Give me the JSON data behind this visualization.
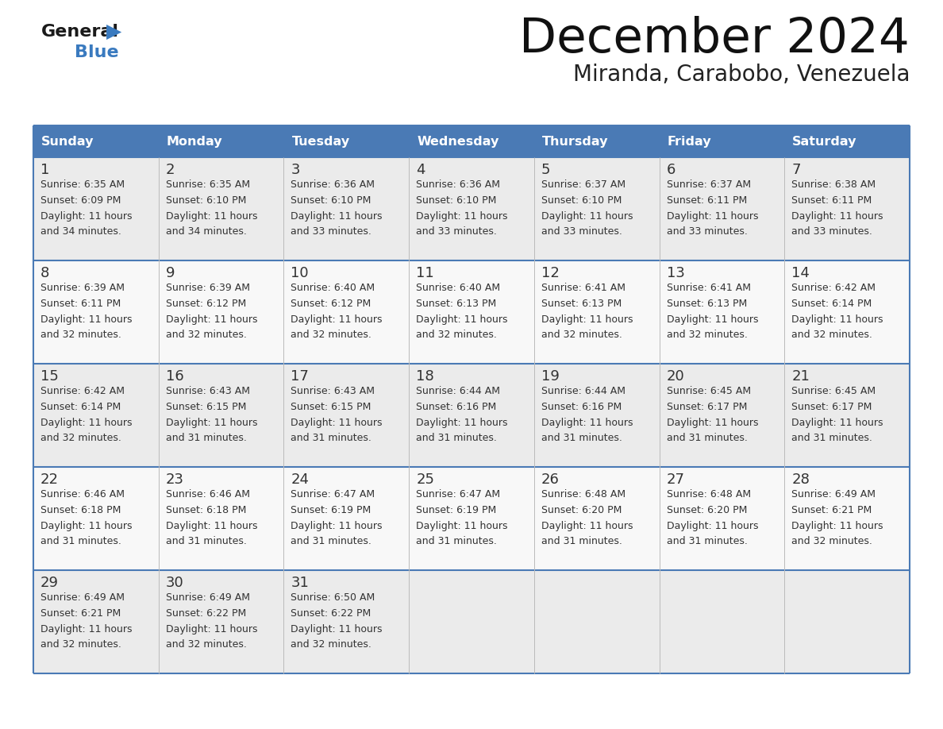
{
  "title": "December 2024",
  "subtitle": "Miranda, Carabobo, Venezuela",
  "header_color": "#4a7ab5",
  "header_text_color": "#ffffff",
  "border_color": "#4a7ab5",
  "cell_text_color": "#333333",
  "days_of_week": [
    "Sunday",
    "Monday",
    "Tuesday",
    "Wednesday",
    "Thursday",
    "Friday",
    "Saturday"
  ],
  "weeks": [
    [
      {
        "day": "1",
        "sunrise": "6:35 AM",
        "sunset": "6:09 PM",
        "daylight_h": "11 hours",
        "daylight_m": "and 34 minutes."
      },
      {
        "day": "2",
        "sunrise": "6:35 AM",
        "sunset": "6:10 PM",
        "daylight_h": "11 hours",
        "daylight_m": "and 34 minutes."
      },
      {
        "day": "3",
        "sunrise": "6:36 AM",
        "sunset": "6:10 PM",
        "daylight_h": "11 hours",
        "daylight_m": "and 33 minutes."
      },
      {
        "day": "4",
        "sunrise": "6:36 AM",
        "sunset": "6:10 PM",
        "daylight_h": "11 hours",
        "daylight_m": "and 33 minutes."
      },
      {
        "day": "5",
        "sunrise": "6:37 AM",
        "sunset": "6:10 PM",
        "daylight_h": "11 hours",
        "daylight_m": "and 33 minutes."
      },
      {
        "day": "6",
        "sunrise": "6:37 AM",
        "sunset": "6:11 PM",
        "daylight_h": "11 hours",
        "daylight_m": "and 33 minutes."
      },
      {
        "day": "7",
        "sunrise": "6:38 AM",
        "sunset": "6:11 PM",
        "daylight_h": "11 hours",
        "daylight_m": "and 33 minutes."
      }
    ],
    [
      {
        "day": "8",
        "sunrise": "6:39 AM",
        "sunset": "6:11 PM",
        "daylight_h": "11 hours",
        "daylight_m": "and 32 minutes."
      },
      {
        "day": "9",
        "sunrise": "6:39 AM",
        "sunset": "6:12 PM",
        "daylight_h": "11 hours",
        "daylight_m": "and 32 minutes."
      },
      {
        "day": "10",
        "sunrise": "6:40 AM",
        "sunset": "6:12 PM",
        "daylight_h": "11 hours",
        "daylight_m": "and 32 minutes."
      },
      {
        "day": "11",
        "sunrise": "6:40 AM",
        "sunset": "6:13 PM",
        "daylight_h": "11 hours",
        "daylight_m": "and 32 minutes."
      },
      {
        "day": "12",
        "sunrise": "6:41 AM",
        "sunset": "6:13 PM",
        "daylight_h": "11 hours",
        "daylight_m": "and 32 minutes."
      },
      {
        "day": "13",
        "sunrise": "6:41 AM",
        "sunset": "6:13 PM",
        "daylight_h": "11 hours",
        "daylight_m": "and 32 minutes."
      },
      {
        "day": "14",
        "sunrise": "6:42 AM",
        "sunset": "6:14 PM",
        "daylight_h": "11 hours",
        "daylight_m": "and 32 minutes."
      }
    ],
    [
      {
        "day": "15",
        "sunrise": "6:42 AM",
        "sunset": "6:14 PM",
        "daylight_h": "11 hours",
        "daylight_m": "and 32 minutes."
      },
      {
        "day": "16",
        "sunrise": "6:43 AM",
        "sunset": "6:15 PM",
        "daylight_h": "11 hours",
        "daylight_m": "and 31 minutes."
      },
      {
        "day": "17",
        "sunrise": "6:43 AM",
        "sunset": "6:15 PM",
        "daylight_h": "11 hours",
        "daylight_m": "and 31 minutes."
      },
      {
        "day": "18",
        "sunrise": "6:44 AM",
        "sunset": "6:16 PM",
        "daylight_h": "11 hours",
        "daylight_m": "and 31 minutes."
      },
      {
        "day": "19",
        "sunrise": "6:44 AM",
        "sunset": "6:16 PM",
        "daylight_h": "11 hours",
        "daylight_m": "and 31 minutes."
      },
      {
        "day": "20",
        "sunrise": "6:45 AM",
        "sunset": "6:17 PM",
        "daylight_h": "11 hours",
        "daylight_m": "and 31 minutes."
      },
      {
        "day": "21",
        "sunrise": "6:45 AM",
        "sunset": "6:17 PM",
        "daylight_h": "11 hours",
        "daylight_m": "and 31 minutes."
      }
    ],
    [
      {
        "day": "22",
        "sunrise": "6:46 AM",
        "sunset": "6:18 PM",
        "daylight_h": "11 hours",
        "daylight_m": "and 31 minutes."
      },
      {
        "day": "23",
        "sunrise": "6:46 AM",
        "sunset": "6:18 PM",
        "daylight_h": "11 hours",
        "daylight_m": "and 31 minutes."
      },
      {
        "day": "24",
        "sunrise": "6:47 AM",
        "sunset": "6:19 PM",
        "daylight_h": "11 hours",
        "daylight_m": "and 31 minutes."
      },
      {
        "day": "25",
        "sunrise": "6:47 AM",
        "sunset": "6:19 PM",
        "daylight_h": "11 hours",
        "daylight_m": "and 31 minutes."
      },
      {
        "day": "26",
        "sunrise": "6:48 AM",
        "sunset": "6:20 PM",
        "daylight_h": "11 hours",
        "daylight_m": "and 31 minutes."
      },
      {
        "day": "27",
        "sunrise": "6:48 AM",
        "sunset": "6:20 PM",
        "daylight_h": "11 hours",
        "daylight_m": "and 31 minutes."
      },
      {
        "day": "28",
        "sunrise": "6:49 AM",
        "sunset": "6:21 PM",
        "daylight_h": "11 hours",
        "daylight_m": "and 32 minutes."
      }
    ],
    [
      {
        "day": "29",
        "sunrise": "6:49 AM",
        "sunset": "6:21 PM",
        "daylight_h": "11 hours",
        "daylight_m": "and 32 minutes."
      },
      {
        "day": "30",
        "sunrise": "6:49 AM",
        "sunset": "6:22 PM",
        "daylight_h": "11 hours",
        "daylight_m": "and 32 minutes."
      },
      {
        "day": "31",
        "sunrise": "6:50 AM",
        "sunset": "6:22 PM",
        "daylight_h": "11 hours",
        "daylight_m": "and 32 minutes."
      },
      null,
      null,
      null,
      null
    ]
  ],
  "logo_general_color": "#1a1a1a",
  "logo_blue_color": "#3a7abf",
  "logo_triangle_color": "#3a7abf"
}
